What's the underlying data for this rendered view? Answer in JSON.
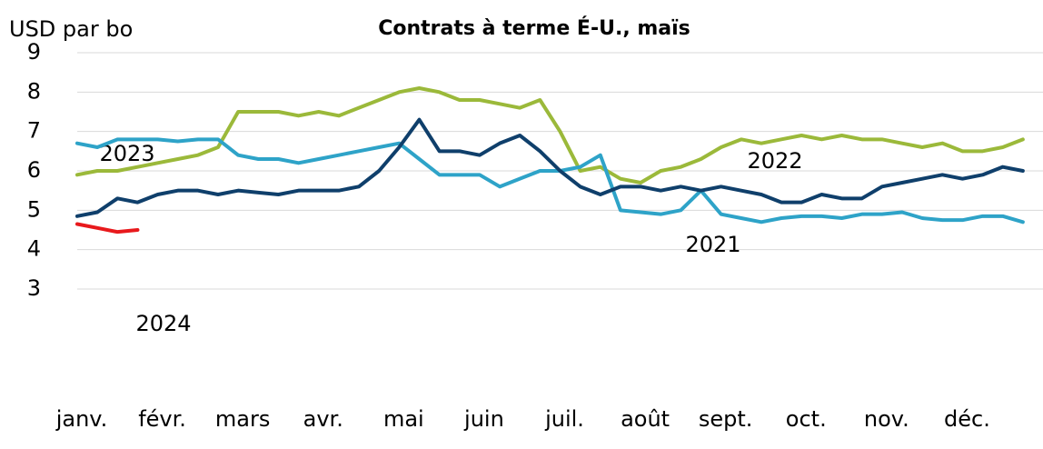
{
  "chart_data": {
    "type": "line",
    "title": "Contrats à terme É-U., maïs",
    "y_label": "USD par bo",
    "x": [
      0,
      1,
      2,
      3,
      4,
      5,
      6,
      7,
      8,
      9,
      10,
      11,
      12,
      13,
      14,
      15,
      16,
      17,
      18,
      19,
      20,
      21,
      22,
      23,
      24,
      25,
      26,
      27,
      28,
      29,
      30,
      31,
      32,
      33,
      34,
      35,
      36,
      37,
      38,
      39,
      40,
      41,
      42,
      43,
      44,
      45,
      46,
      47
    ],
    "xlim": [
      0,
      48
    ],
    "xticks": [
      {
        "value": 0,
        "label": "janv."
      },
      {
        "value": 4,
        "label": "févr."
      },
      {
        "value": 8,
        "label": "mars"
      },
      {
        "value": 12,
        "label": "avr."
      },
      {
        "value": 16,
        "label": "mai"
      },
      {
        "value": 20,
        "label": "juin"
      },
      {
        "value": 24,
        "label": "juil."
      },
      {
        "value": 28,
        "label": "août"
      },
      {
        "value": 32,
        "label": "sept."
      },
      {
        "value": 36,
        "label": "oct."
      },
      {
        "value": 40,
        "label": "nov."
      },
      {
        "value": 44,
        "label": "déc."
      }
    ],
    "ylim": [
      3,
      9
    ],
    "yticks": [
      3,
      4,
      5,
      6,
      7,
      8,
      9
    ],
    "grid": true,
    "series": [
      {
        "name": "2022",
        "color": "#9bb93a",
        "values": [
          5.9,
          6.0,
          6.0,
          6.1,
          6.2,
          6.3,
          6.4,
          6.6,
          7.5,
          7.5,
          7.5,
          7.4,
          7.5,
          7.4,
          7.6,
          7.8,
          8.0,
          8.1,
          8.0,
          7.8,
          7.8,
          7.7,
          7.6,
          7.8,
          7.0,
          6.0,
          6.1,
          5.8,
          5.7,
          6.0,
          6.1,
          6.3,
          6.6,
          6.8,
          6.7,
          6.8,
          6.9,
          6.8,
          6.9,
          6.8,
          6.8,
          6.7,
          6.6,
          6.7,
          6.5,
          6.5,
          6.6,
          6.8
        ]
      },
      {
        "name": "2023",
        "color": "#2ea3c8",
        "values": [
          6.7,
          6.6,
          6.8,
          6.8,
          6.8,
          6.75,
          6.8,
          6.8,
          6.4,
          6.3,
          6.3,
          6.2,
          6.3,
          6.4,
          6.5,
          6.6,
          6.7,
          6.3,
          5.9,
          5.9,
          5.9,
          5.6,
          5.8,
          6.0,
          6.0,
          6.1,
          6.4,
          5.0,
          4.95,
          4.9,
          5.0,
          5.5,
          4.9,
          4.8,
          4.7,
          4.8,
          4.85,
          4.85,
          4.8,
          4.9,
          4.9,
          4.95,
          4.8,
          4.75,
          4.75,
          4.85,
          4.85,
          4.7
        ]
      },
      {
        "name": "2021",
        "color": "#0f3f6b",
        "values": [
          4.85,
          4.95,
          5.3,
          5.2,
          5.4,
          5.5,
          5.5,
          5.4,
          5.5,
          5.45,
          5.4,
          5.5,
          5.5,
          5.5,
          5.6,
          6.0,
          6.6,
          7.3,
          6.5,
          6.5,
          6.4,
          6.7,
          6.9,
          6.5,
          6.0,
          5.6,
          5.4,
          5.6,
          5.6,
          5.5,
          5.6,
          5.5,
          5.6,
          5.5,
          5.4,
          5.2,
          5.2,
          5.4,
          5.3,
          5.3,
          5.6,
          5.7,
          5.8,
          5.9,
          5.8,
          5.9,
          6.1,
          6.0
        ]
      },
      {
        "name": "2024",
        "color": "#e8191c",
        "values": [
          4.65,
          4.55,
          4.45,
          4.5,
          null,
          null,
          null,
          null,
          null,
          null,
          null,
          null,
          null,
          null,
          null,
          null,
          null,
          null,
          null,
          null,
          null,
          null,
          null,
          null,
          null,
          null,
          null,
          null,
          null,
          null,
          null,
          null,
          null,
          null,
          null,
          null,
          null,
          null,
          null,
          null,
          null,
          null,
          null,
          null,
          null,
          null,
          null,
          null
        ]
      }
    ]
  }
}
